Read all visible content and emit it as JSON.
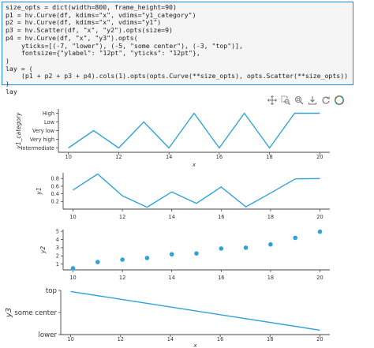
{
  "notebook": {
    "code_lines": [
      "size_opts = dict(width=800, frame_height=90)",
      "p1 = hv.Curve(df, kdims=\"x\", vdims=\"y1_category\")",
      "p2 = hv.Curve(df, kdims=\"x\", vdims=\"y1\")",
      "p3 = hv.Scatter(df, \"x\", \"y2\").opts(size=9)",
      "p4 = hv.Curve(df, \"x\", \"y3\").opts(",
      "yticks=[(-7, \"lower\"), (-5, \"some center\"), (-3, \"top\")],",
      "fontsize={\"ylabel\": \"12pt\", \"yticks\": \"12pt\"},",
      ")",
      "lay = (",
      "(p1 + p2 + p3 + p4).cols(1).opts(opts.Curve(**size_opts), opts.Scatter(**size_opts))",
      ")",
      "lay"
    ]
  },
  "toolbar": {
    "icons": [
      "pan-icon",
      "box-zoom-icon",
      "wheel-zoom-icon",
      "save-icon",
      "reset-icon",
      "bokeh-logo-icon"
    ]
  },
  "colors": {
    "line": "#30a2da",
    "axis": "#444444",
    "text": "#333333",
    "cell_border": "#1e88e5"
  },
  "chart_data": [
    {
      "type": "line",
      "ylabel": "y1_category",
      "xlabel": "x",
      "x": [
        10,
        11,
        12,
        13,
        14,
        15,
        16,
        17,
        18,
        19,
        20
      ],
      "y": [
        "Intermediate",
        "Very low",
        "Intermediate",
        "Low",
        "Intermediate",
        "High",
        "Intermediate",
        "High",
        "Intermediate",
        "High",
        "High"
      ],
      "y_categories": [
        "Intermediate",
        "Very high",
        "Very low",
        "Low",
        "High"
      ],
      "x_ticks": [
        10,
        12,
        14,
        16,
        18,
        20
      ]
    },
    {
      "type": "line",
      "ylabel": "y1",
      "xlabel": "",
      "x": [
        10,
        11,
        12,
        13,
        14,
        15,
        16,
        17,
        18,
        19,
        20
      ],
      "y": [
        0.5,
        0.92,
        0.35,
        0.05,
        0.45,
        0.15,
        0.58,
        0.06,
        0.42,
        0.79,
        0.8
      ],
      "ylim": [
        0.0,
        0.95
      ],
      "y_ticks": [
        0.2,
        0.4,
        0.6,
        0.8
      ],
      "x_ticks": [
        10,
        12,
        14,
        16,
        18,
        20
      ]
    },
    {
      "type": "scatter",
      "ylabel": "y2",
      "xlabel": "",
      "x": [
        10,
        11,
        12,
        13,
        14,
        15,
        16,
        17,
        18,
        19,
        20
      ],
      "y": [
        0.5,
        1.25,
        1.55,
        1.75,
        2.2,
        2.3,
        2.9,
        3.0,
        3.4,
        4.2,
        4.95
      ],
      "ylim": [
        0.3,
        5.2
      ],
      "y_ticks": [
        1,
        2,
        3,
        4,
        5
      ],
      "x_ticks": [
        10,
        12,
        14,
        16,
        18,
        20
      ]
    },
    {
      "type": "line",
      "ylabel": "y3",
      "xlabel": "x",
      "x": [
        10,
        20
      ],
      "y": [
        -3.1,
        -6.6
      ],
      "ylim": [
        -7,
        -3
      ],
      "y_ticks": [
        {
          "value": -7,
          "label": "lower"
        },
        {
          "value": -5,
          "label": "some center"
        },
        {
          "value": -3,
          "label": "top"
        }
      ],
      "x_ticks": [
        10,
        12,
        14,
        16,
        18,
        20
      ]
    }
  ]
}
